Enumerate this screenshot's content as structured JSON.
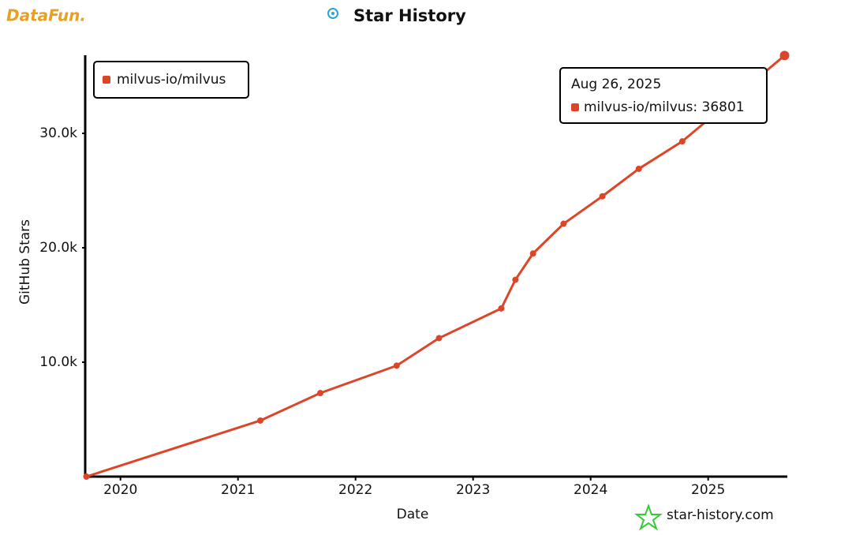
{
  "chart_data": {
    "type": "line",
    "title": "Star History",
    "brand": "DataFun.",
    "watermark": "star-history.com",
    "x_label": "Date",
    "y_label": "GitHub Stars",
    "x": [
      2019.71,
      2021.19,
      2021.7,
      2022.35,
      2022.71,
      2023.24,
      2023.36,
      2023.51,
      2023.77,
      2024.1,
      2024.41,
      2024.78,
      2025.65
    ],
    "series": [
      {
        "name": "milvus-io/milvus",
        "color": "#dd4528",
        "values": [
          0,
          4900,
          7300,
          9700,
          12100,
          14700,
          17200,
          19500,
          22100,
          24500,
          26900,
          29300,
          36801
        ]
      }
    ],
    "xlim": [
      2019.7,
      2025.66
    ],
    "xticks": [
      2020,
      2021,
      2022,
      2023,
      2024,
      2025
    ],
    "ylim": [
      0,
      37000
    ],
    "yticks": [
      {
        "value": 10000,
        "label": "10.0k"
      },
      {
        "value": 20000,
        "label": "20.0k"
      },
      {
        "value": 30000,
        "label": "30.0k"
      }
    ],
    "legend": "top-left",
    "tooltip": {
      "title": "Aug 26, 2025",
      "text": "milvus-io/milvus: 36801"
    }
  }
}
